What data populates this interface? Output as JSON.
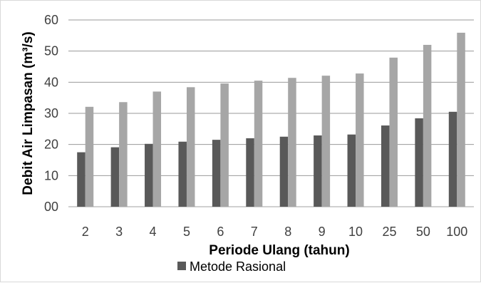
{
  "chart_data": {
    "type": "bar",
    "xlabel": "Periode Ulang (tahun)",
    "ylabel": "Debit Air Limpasan (m³/s)",
    "ylim": [
      0,
      60
    ],
    "yticks": [
      "00",
      "10",
      "20",
      "30",
      "40",
      "50",
      "60"
    ],
    "grid": true,
    "legend_position": "bottom",
    "categories": [
      "2",
      "3",
      "4",
      "5",
      "6",
      "7",
      "8",
      "9",
      "10",
      "25",
      "50",
      "100"
    ],
    "series": [
      {
        "name": "Metode Rasional",
        "color": "#595959",
        "values": [
          17.5,
          19.1,
          20.2,
          20.9,
          21.5,
          22.0,
          22.5,
          22.9,
          23.2,
          26.1,
          28.4,
          30.5
        ]
      },
      {
        "color": "#a6a6a6",
        "values": [
          32.1,
          33.6,
          37.0,
          38.4,
          39.6,
          40.5,
          41.4,
          42.1,
          42.8,
          47.9,
          52.0,
          55.9
        ]
      }
    ]
  }
}
